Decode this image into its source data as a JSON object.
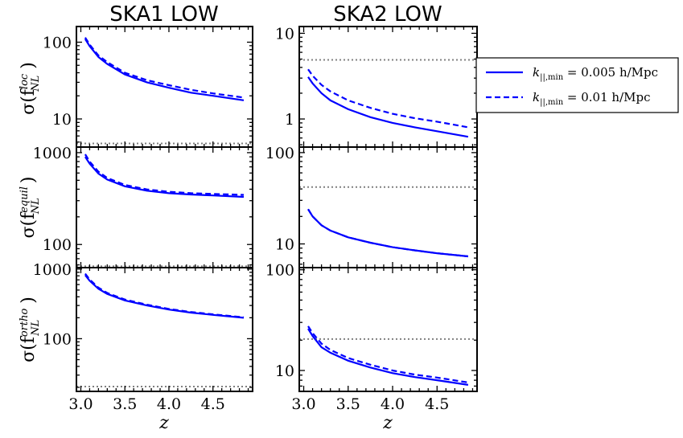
{
  "chart_data": [
    {
      "type": "line",
      "title": "SKA1 LOW",
      "ylabel": "σ(f_NL^loc)",
      "ylabel_main": "σ(f",
      "ylabel_sup": "loc",
      "ylabel_sub": "NL",
      "ylabel_close": ")",
      "xlabel": "",
      "yscale": "log",
      "ylim": [
        4.3,
        160
      ],
      "yticks": [
        10,
        100
      ],
      "ytick_labels": [
        "10",
        "100"
      ],
      "reference": 4.8,
      "x": [
        3.05,
        3.1,
        3.2,
        3.3,
        3.5,
        3.75,
        4.0,
        4.25,
        4.5,
        4.85
      ],
      "series": [
        {
          "name": "k_{||,min} = 0.005 h/Mpc",
          "style": "solid",
          "values": [
            110,
            89,
            64,
            52,
            38,
            30,
            25.5,
            22,
            20,
            17.5
          ]
        },
        {
          "name": "k_{||,min} = 0.01 h/Mpc",
          "style": "dashed",
          "values": [
            115,
            93,
            67,
            55,
            40,
            32,
            27.5,
            24,
            21.5,
            19
          ]
        }
      ]
    },
    {
      "type": "line",
      "title": "SKA2 LOW",
      "ylabel": "",
      "xlabel": "",
      "yscale": "log",
      "ylim": [
        0.47,
        12
      ],
      "yticks": [
        1,
        10
      ],
      "ytick_labels": [
        "1",
        "10"
      ],
      "reference": 4.9,
      "x": [
        3.05,
        3.1,
        3.2,
        3.3,
        3.5,
        3.75,
        4.0,
        4.25,
        4.5,
        4.85
      ],
      "series": [
        {
          "name": "k_{||,min} = 0.005 h/Mpc",
          "style": "solid",
          "values": [
            3.1,
            2.6,
            2.0,
            1.65,
            1.3,
            1.05,
            0.9,
            0.8,
            0.72,
            0.62
          ]
        },
        {
          "name": "k_{||,min} = 0.01 h/Mpc",
          "style": "dashed",
          "values": [
            3.8,
            3.2,
            2.5,
            2.1,
            1.65,
            1.35,
            1.15,
            1.02,
            0.93,
            0.8
          ]
        }
      ]
    },
    {
      "type": "line",
      "title": "",
      "ylabel": "σ(f_NL^equil)",
      "ylabel_main": "σ(f",
      "ylabel_sup": "equil",
      "ylabel_sub": "NL",
      "ylabel_close": ")",
      "xlabel": "",
      "yscale": "log",
      "ylim": [
        56,
        1150
      ],
      "yticks": [
        100,
        1000
      ],
      "ytick_labels": [
        "100",
        "1000"
      ],
      "reference": 58,
      "x": [
        3.05,
        3.1,
        3.2,
        3.3,
        3.5,
        3.75,
        4.0,
        4.25,
        4.5,
        4.85
      ],
      "series": [
        {
          "name": "k_{||,min} = 0.005 h/Mpc",
          "style": "solid",
          "values": [
            900,
            760,
            590,
            510,
            430,
            385,
            362,
            350,
            342,
            330
          ]
        },
        {
          "name": "k_{||,min} = 0.01 h/Mpc",
          "style": "dashed",
          "values": [
            960,
            800,
            620,
            530,
            445,
            398,
            375,
            362,
            355,
            347
          ]
        }
      ]
    },
    {
      "type": "line",
      "title": "",
      "ylabel": "",
      "xlabel": "",
      "yscale": "log",
      "ylim": [
        5.5,
        115
      ],
      "yticks": [
        10,
        100
      ],
      "ytick_labels": [
        "10",
        "100"
      ],
      "reference": 42,
      "x": [
        3.05,
        3.1,
        3.2,
        3.3,
        3.5,
        3.75,
        4.0,
        4.25,
        4.5,
        4.85
      ],
      "series": [
        {
          "name": "k_{||,min} = 0.005 h/Mpc",
          "style": "solid",
          "values": [
            24,
            20,
            16,
            14,
            11.8,
            10.3,
            9.2,
            8.5,
            7.9,
            7.3
          ]
        },
        {
          "name": "k_{||,min} = 0.01 h/Mpc",
          "style": "dashed",
          "values": [
            24,
            20,
            16,
            14,
            11.8,
            10.3,
            9.2,
            8.5,
            7.9,
            7.3
          ]
        }
      ]
    },
    {
      "type": "line",
      "title": "",
      "ylabel": "σ(f_NL^ortho)",
      "ylabel_main": "σ(f",
      "ylabel_sup": "ortho",
      "ylabel_sub": "NL",
      "ylabel_close": ")",
      "xlabel": "z",
      "yscale": "log",
      "ylim": [
        17.5,
        1050
      ],
      "yticks": [
        100,
        1000
      ],
      "ytick_labels": [
        "100",
        "1000"
      ],
      "reference": 20.5,
      "x": [
        3.05,
        3.1,
        3.2,
        3.3,
        3.5,
        3.75,
        4.0,
        4.25,
        4.5,
        4.85
      ],
      "series": [
        {
          "name": "k_{||,min} = 0.005 h/Mpc",
          "style": "solid",
          "values": [
            820,
            680,
            520,
            440,
            355,
            300,
            262,
            237,
            220,
            200
          ]
        },
        {
          "name": "k_{||,min} = 0.01 h/Mpc",
          "style": "dashed",
          "values": [
            860,
            710,
            540,
            455,
            365,
            308,
            268,
            242,
            224,
            203
          ]
        }
      ]
    },
    {
      "type": "line",
      "title": "",
      "ylabel": "",
      "xlabel": "z",
      "yscale": "log",
      "ylim": [
        6.2,
        105
      ],
      "yticks": [
        10,
        100
      ],
      "ytick_labels": [
        "10",
        "100"
      ],
      "reference": 20.5,
      "x": [
        3.05,
        3.1,
        3.2,
        3.3,
        3.5,
        3.75,
        4.0,
        4.25,
        4.5,
        4.85
      ],
      "series": [
        {
          "name": "k_{||,min} = 0.005 h/Mpc",
          "style": "solid",
          "values": [
            26,
            22,
            17,
            15,
            12.5,
            10.7,
            9.4,
            8.6,
            8.0,
            7.2
          ]
        },
        {
          "name": "k_{||,min} = 0.01 h/Mpc",
          "style": "dashed",
          "values": [
            27.5,
            23.5,
            18.5,
            16,
            13.3,
            11.4,
            10.0,
            9.1,
            8.5,
            7.6
          ]
        }
      ]
    }
  ],
  "shared": {
    "xlim": [
      2.95,
      4.95
    ],
    "xticks": [
      3.0,
      3.5,
      4.0,
      4.5
    ],
    "xtick_labels": [
      "3.0",
      "3.5",
      "4.0",
      "4.5"
    ],
    "xlabel": "z"
  },
  "legend": {
    "entries": [
      {
        "main": "k",
        "sub": "||,min",
        "rest": " = 0.005 h/Mpc",
        "style": "solid"
      },
      {
        "main": "k",
        "sub": "||,min",
        "rest": " = 0.01 h/Mpc",
        "style": "dashed"
      }
    ],
    "placement": "right"
  },
  "colors": {
    "series": "#0000ff",
    "reference": "#808080",
    "axes": "#000000"
  }
}
